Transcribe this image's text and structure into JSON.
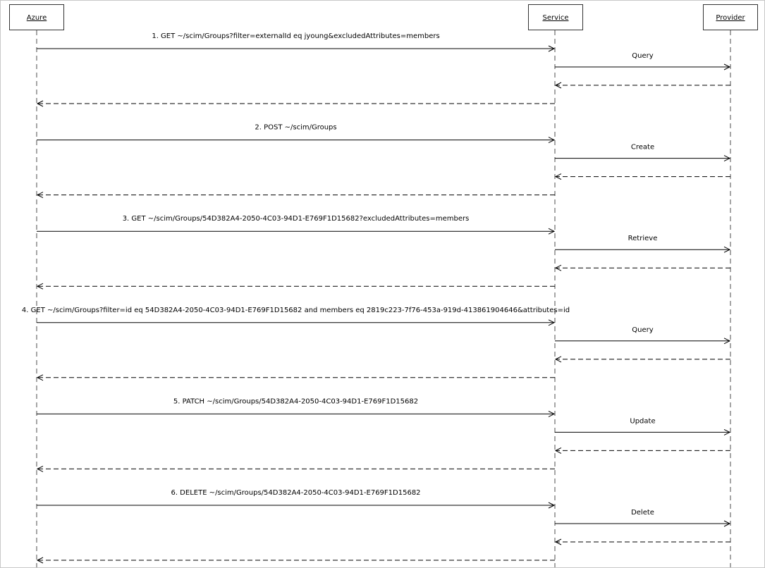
{
  "participants": [
    {
      "name": "Azure"
    },
    {
      "name": "Service"
    },
    {
      "name": "Provider"
    }
  ],
  "interactions": [
    {
      "request": "1. GET ~/scim/Groups?filter=externalId eq jyoung&excludedAttributes=members",
      "provider_call": "Query"
    },
    {
      "request": "2. POST ~/scim/Groups",
      "provider_call": "Create"
    },
    {
      "request": "3. GET ~/scim/Groups/54D382A4-2050-4C03-94D1-E769F1D15682?excludedAttributes=members",
      "provider_call": "Retrieve"
    },
    {
      "request": "4. GET ~/scim/Groups?filter=id eq 54D382A4-2050-4C03-94D1-E769F1D15682 and members eq 2819c223-7f76-453a-919d-413861904646&attributes=id",
      "provider_call": "Query"
    },
    {
      "request": "5. PATCH ~/scim/Groups/54D382A4-2050-4C03-94D1-E769F1D15682",
      "provider_call": "Update"
    },
    {
      "request": "6. DELETE ~/scim/Groups/54D382A4-2050-4C03-94D1-E769F1D15682",
      "provider_call": "Delete"
    }
  ]
}
